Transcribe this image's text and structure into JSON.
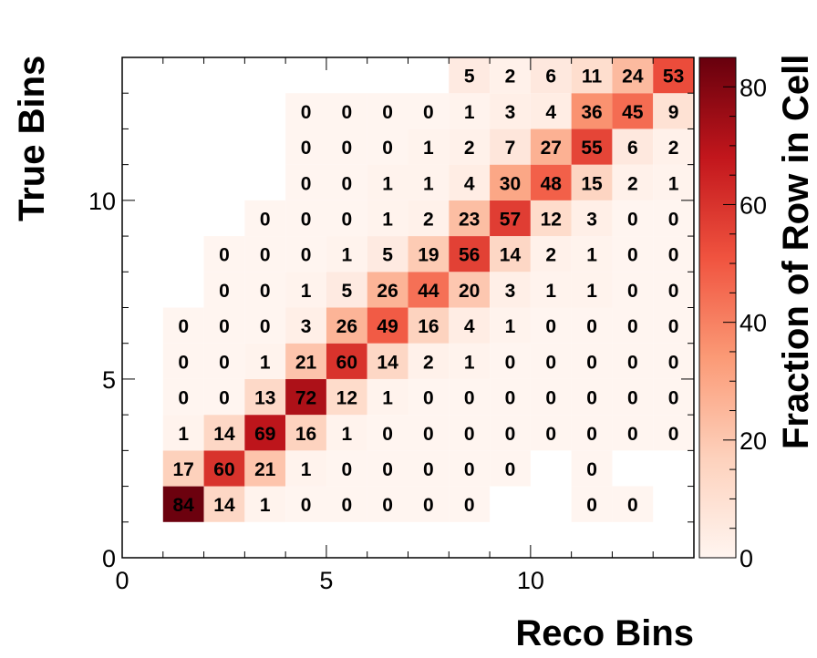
{
  "chart_data": {
    "type": "heatmap",
    "xlabel": "Reco Bins",
    "ylabel": "True Bins",
    "colorbar_label": "Fraction of Row in Cell",
    "xlim": [
      0,
      14
    ],
    "ylim": [
      0,
      14
    ],
    "zlim": [
      0,
      85
    ],
    "x_ticks": [
      "0",
      "5",
      "10"
    ],
    "y_ticks": [
      "0",
      "5",
      "10"
    ],
    "colorbar_ticks": [
      "0",
      "20",
      "40",
      "60",
      "80"
    ],
    "colormap": [
      "#fff5f0",
      "#fdd1bc",
      "#fb9a76",
      "#f0533f",
      "#c2161c",
      "#67000d"
    ],
    "rows": [
      {
        "y": 1,
        "x_start": 1,
        "values": [
          84,
          14,
          1,
          0,
          0,
          0,
          0,
          0,
          null,
          null,
          0,
          0
        ]
      },
      {
        "y": 2,
        "x_start": 1,
        "values": [
          17,
          60,
          21,
          1,
          0,
          0,
          0,
          0,
          0,
          null,
          0
        ]
      },
      {
        "y": 3,
        "x_start": 1,
        "values": [
          1,
          14,
          69,
          16,
          1,
          0,
          0,
          0,
          0,
          0,
          0,
          0,
          0
        ]
      },
      {
        "y": 4,
        "x_start": 1,
        "values": [
          0,
          0,
          13,
          72,
          12,
          1,
          0,
          0,
          0,
          0,
          0,
          0,
          0
        ]
      },
      {
        "y": 5,
        "x_start": 1,
        "values": [
          0,
          0,
          1,
          21,
          60,
          14,
          2,
          1,
          0,
          0,
          0,
          0,
          0
        ]
      },
      {
        "y": 6,
        "x_start": 1,
        "values": [
          0,
          0,
          0,
          3,
          26,
          49,
          16,
          4,
          1,
          0,
          0,
          0,
          0
        ]
      },
      {
        "y": 7,
        "x_start": 2,
        "values": [
          0,
          0,
          1,
          5,
          26,
          44,
          20,
          3,
          1,
          1,
          0,
          0
        ]
      },
      {
        "y": 8,
        "x_start": 2,
        "values": [
          0,
          0,
          0,
          1,
          5,
          19,
          56,
          14,
          2,
          1,
          0,
          0
        ]
      },
      {
        "y": 9,
        "x_start": 3,
        "values": [
          0,
          0,
          0,
          1,
          2,
          23,
          57,
          12,
          3,
          0,
          0
        ]
      },
      {
        "y": 10,
        "x_start": 4,
        "values": [
          0,
          0,
          1,
          1,
          4,
          30,
          48,
          15,
          2,
          1
        ]
      },
      {
        "y": 11,
        "x_start": 4,
        "values": [
          0,
          0,
          0,
          1,
          2,
          7,
          27,
          55,
          6,
          2
        ]
      },
      {
        "y": 12,
        "x_start": 4,
        "values": [
          0,
          0,
          0,
          0,
          1,
          3,
          4,
          36,
          45,
          9
        ]
      },
      {
        "y": 13,
        "x_start": 8,
        "values": [
          5,
          2,
          6,
          11,
          24,
          53
        ]
      }
    ]
  }
}
